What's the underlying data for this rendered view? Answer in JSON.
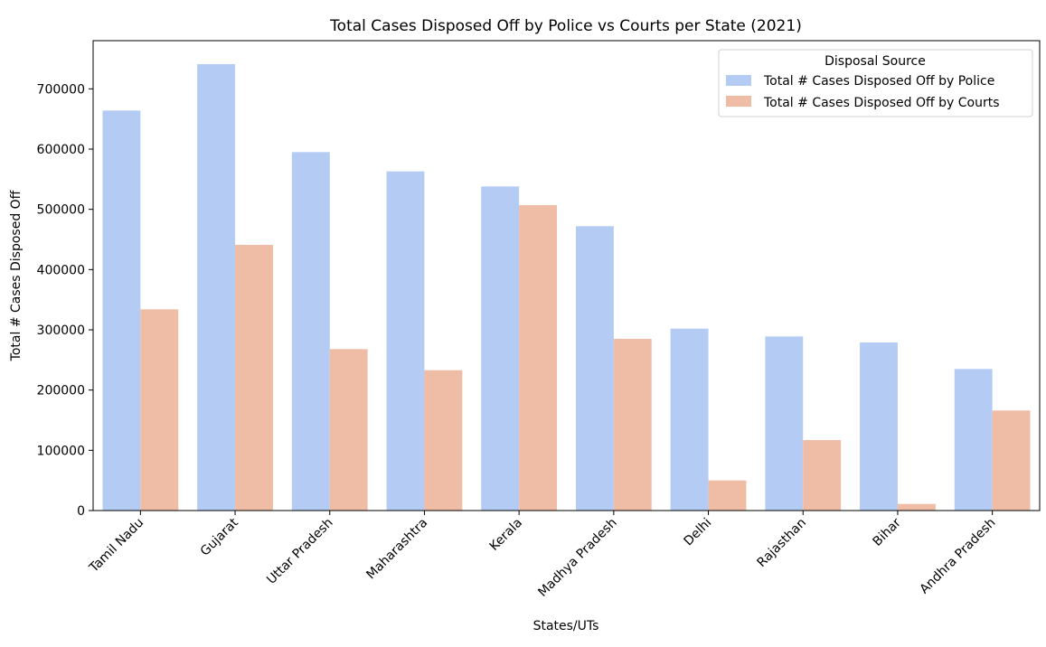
{
  "chart_data": {
    "type": "bar",
    "title": "Total Cases Disposed Off by Police vs Courts per State (2021)",
    "xlabel": "States/UTs",
    "ylabel": "Total # Cases Disposed Off",
    "categories": [
      "Tamil Nadu",
      "Gujarat",
      "Uttar Pradesh",
      "Maharashtra",
      "Kerala",
      "Madhya Pradesh",
      "Delhi",
      "Rajasthan",
      "Bihar",
      "Andhra Pradesh"
    ],
    "series": [
      {
        "name": "Total # Cases Disposed Off by Police",
        "color": "#b4cbf4",
        "values": [
          664000,
          741000,
          595000,
          563000,
          538000,
          472000,
          302000,
          289000,
          279000,
          235000
        ]
      },
      {
        "name": "Total # Cases Disposed Off by Courts",
        "color": "#efbda6",
        "values": [
          334000,
          441000,
          268000,
          233000,
          507000,
          285000,
          50000,
          117000,
          11000,
          166000
        ]
      }
    ],
    "ylim": [
      0,
      780000
    ],
    "yticks": [
      0,
      100000,
      200000,
      300000,
      400000,
      500000,
      600000,
      700000
    ],
    "ytick_labels": [
      "0",
      "100000",
      "200000",
      "300000",
      "400000",
      "500000",
      "600000",
      "700000"
    ],
    "legend": {
      "title": "Disposal Source",
      "placement": "top-right"
    },
    "grid": false
  }
}
